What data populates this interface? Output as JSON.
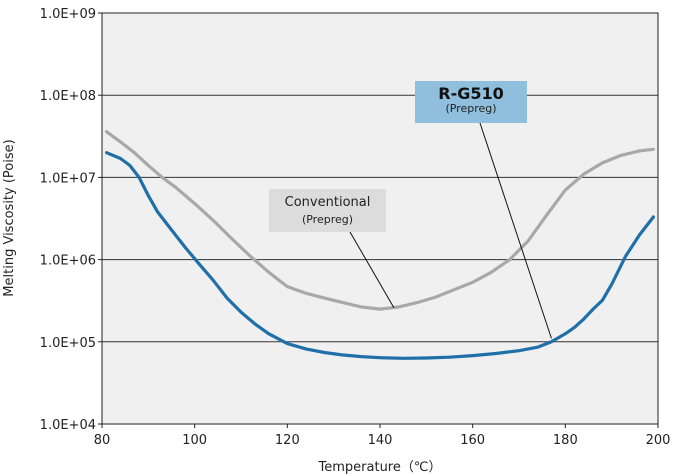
{
  "chart_data": {
    "type": "line",
    "xlabel": "Temperature（℃）",
    "ylabel": "Melting Viscosity (Poise)",
    "xlim": [
      80,
      200
    ],
    "ylim": [
      10000,
      1000000000
    ],
    "y_scale": "log",
    "x_ticks": [
      "80",
      "100",
      "120",
      "140",
      "160",
      "180",
      "200"
    ],
    "y_ticks": [
      "1.0E+04",
      "1.0E+05",
      "1.0E+06",
      "1.0E+07",
      "1.0E+08",
      "1.0E+09"
    ],
    "grid": "horizontal",
    "background": "#f0f0f0",
    "series": [
      {
        "name": "Conventional",
        "subname": "(Prepreg)",
        "color": "#a8a8a8",
        "label_box_color": "#dcdcdc",
        "x": [
          81,
          84,
          87,
          90,
          93,
          96,
          100,
          104,
          108,
          112,
          116,
          120,
          124,
          128,
          132,
          136,
          140,
          144,
          148,
          152,
          156,
          160,
          164,
          168,
          172,
          176,
          180,
          184,
          188,
          192,
          196,
          199
        ],
        "y": [
          36000000,
          27000000,
          20000000,
          14000000,
          10000000,
          7500000,
          4800000,
          3000000,
          1800000,
          1100000,
          700000,
          470000,
          390000,
          340000,
          300000,
          265000,
          250000,
          265000,
          300000,
          350000,
          430000,
          530000,
          700000,
          1000000,
          1700000,
          3500000,
          7000000,
          11000000,
          15000000,
          18500000,
          21000000,
          22000000
        ]
      },
      {
        "name": "R-G510",
        "subname": "(Prepreg)",
        "color": "#1f6fa8",
        "label_box_color": "#8fbfdc",
        "x": [
          81,
          84,
          86,
          88,
          90,
          92,
          95,
          98,
          101,
          104,
          107,
          110,
          113,
          116,
          120,
          124,
          128,
          132,
          136,
          140,
          145,
          150,
          155,
          160,
          165,
          170,
          174,
          177,
          180,
          182,
          184,
          186,
          188,
          190,
          193,
          196,
          199
        ],
        "y": [
          20000000,
          17000000,
          14000000,
          10000000,
          6000000,
          3800000,
          2300000,
          1400000,
          880000,
          560000,
          340000,
          230000,
          165000,
          125000,
          95000,
          82000,
          74000,
          69000,
          66000,
          64000,
          63000,
          63500,
          65000,
          68000,
          72000,
          78000,
          86000,
          100000,
          125000,
          150000,
          190000,
          250000,
          320000,
          500000,
          1100000,
          2000000,
          3300000
        ]
      }
    ],
    "annotations": [
      {
        "series": "R-G510",
        "main": "R-G510",
        "sub": "(Prepreg)",
        "target_x": 177,
        "target_y": 110000
      },
      {
        "series": "Conventional",
        "main": "Conventional",
        "sub": "(Prepreg)",
        "target_x": 143,
        "target_y": 260000
      }
    ]
  }
}
